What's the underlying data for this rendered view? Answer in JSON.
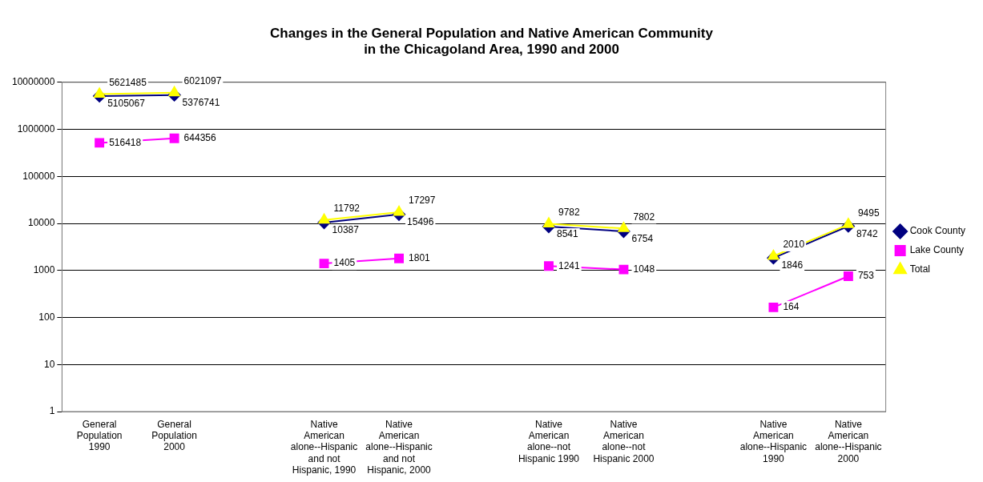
{
  "chart_data": {
    "type": "line",
    "title": "Changes in the General Population and Native American Community\nin the Chicagoland Area, 1990 and 2000",
    "categories": [
      "General Population 1990",
      "General Population 2000",
      null,
      "Native American alone--Hispanic and not Hispanic, 1990",
      "Native American alone--Hispanic and not Hispanic, 2000",
      null,
      "Native American alone--not Hispanic 1990",
      "Native American alone--not Hispanic 2000",
      null,
      "Native American alone--Hispanic 1990",
      "Native American alone--Hispanic 2000"
    ],
    "series": [
      {
        "name": "Cook County",
        "color": "#000080",
        "marker": "diamond",
        "values": [
          5105067,
          5376741,
          null,
          10387,
          15496,
          null,
          8541,
          6754,
          null,
          1846,
          8742
        ]
      },
      {
        "name": "Lake County",
        "color": "#ff00ff",
        "marker": "square",
        "values": [
          516418,
          644356,
          null,
          1405,
          1801,
          null,
          1241,
          1048,
          null,
          164,
          753
        ]
      },
      {
        "name": "Total",
        "color": "#ffff00",
        "marker": "triangle",
        "values": [
          5621485,
          6021097,
          null,
          11792,
          17297,
          null,
          9782,
          7802,
          null,
          2010,
          9495
        ]
      }
    ],
    "log": "y",
    "ylim": [
      1,
      10000000
    ],
    "yticks": [
      1,
      10,
      100,
      1000,
      10000,
      100000,
      1000000,
      10000000
    ],
    "grid": "y",
    "legend": "right",
    "data_labels": true
  }
}
